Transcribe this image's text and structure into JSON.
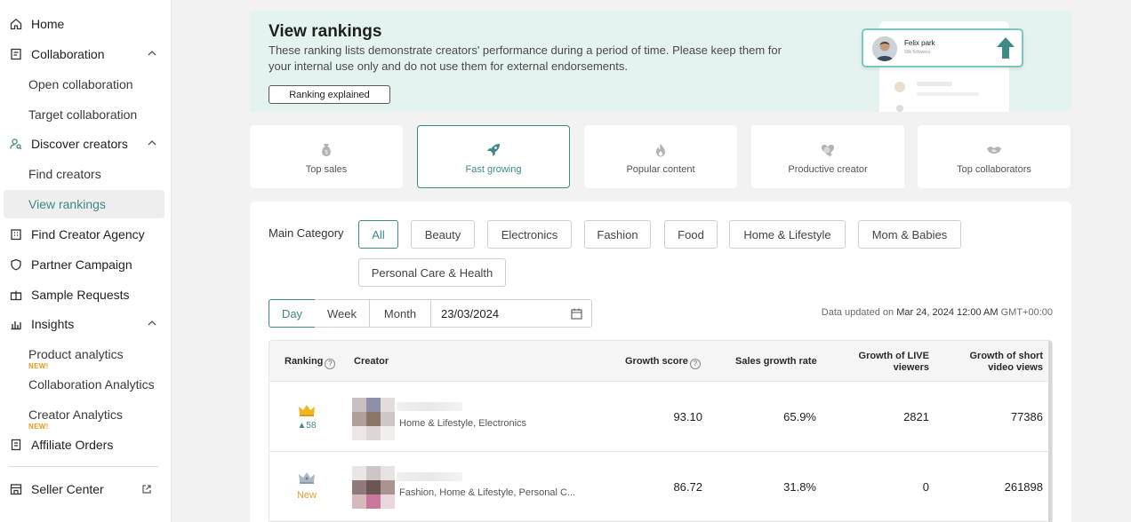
{
  "sidebar": {
    "home": "Home",
    "collaboration": "Collaboration",
    "open_collaboration": "Open collaboration",
    "target_collaboration": "Target collaboration",
    "discover_creators": "Discover creators",
    "find_creators": "Find creators",
    "view_rankings": "View rankings",
    "find_creator_agency": "Find Creator Agency",
    "partner_campaign": "Partner Campaign",
    "sample_requests": "Sample Requests",
    "insights": "Insights",
    "product_analytics": "Product analytics",
    "new_badge": "NEW!",
    "collaboration_analytics": "Collaboration Analytics",
    "creator_analytics": "Creator Analytics",
    "affiliate_orders": "Affiliate Orders",
    "seller_center": "Seller Center"
  },
  "banner": {
    "title": "View rankings",
    "description": "These ranking lists demonstrate creators' performance during a period of time. Please keep them for your internal use only and do not use them for external endorsements.",
    "button": "Ranking explained",
    "illustration_name": "Felix park",
    "illustration_sub": "99k followers"
  },
  "tabs": [
    {
      "label": "Top sales",
      "icon": "money-bag-icon"
    },
    {
      "label": "Fast growing",
      "icon": "rocket-icon",
      "active": true
    },
    {
      "label": "Popular content",
      "icon": "flame-icon"
    },
    {
      "label": "Productive creator",
      "icon": "heart-badge-icon"
    },
    {
      "label": "Top collaborators",
      "icon": "handshake-icon"
    }
  ],
  "filters": {
    "main_category_label": "Main Category",
    "categories": [
      "All",
      "Beauty",
      "Electronics",
      "Fashion",
      "Food",
      "Home & Lifestyle",
      "Mom & Babies",
      "Personal Care & Health"
    ],
    "periods": [
      "Day",
      "Week",
      "Month"
    ],
    "date": "23/03/2024",
    "updated_prefix": "Data updated on",
    "updated_date": "Mar 24, 2024 12:00 AM",
    "timezone": "GMT+00:00"
  },
  "table": {
    "headers": {
      "ranking": "Ranking",
      "creator": "Creator",
      "growth_score": "Growth score",
      "sales_growth_rate": "Sales growth rate",
      "live_viewers_1": "Growth of LIVE",
      "live_viewers_2": "viewers",
      "short_video_1": "Growth of short",
      "short_video_2": "video views"
    },
    "rows": [
      {
        "rank_change": "▲58",
        "categories": "Home & Lifestyle, Electronics",
        "growth_score": "93.10",
        "sales_growth_rate": "65.9%",
        "live_viewers": "2821",
        "video_views": "77386"
      },
      {
        "rank_change": "New",
        "categories": "Fashion, Home & Lifestyle, Personal C...",
        "growth_score": "86.72",
        "sales_growth_rate": "31.8%",
        "live_viewers": "0",
        "video_views": "261898"
      }
    ]
  },
  "colors": {
    "accent": "#3d8a86",
    "gold": "#e4a12d",
    "banner_bg": "#e4f2f0"
  }
}
